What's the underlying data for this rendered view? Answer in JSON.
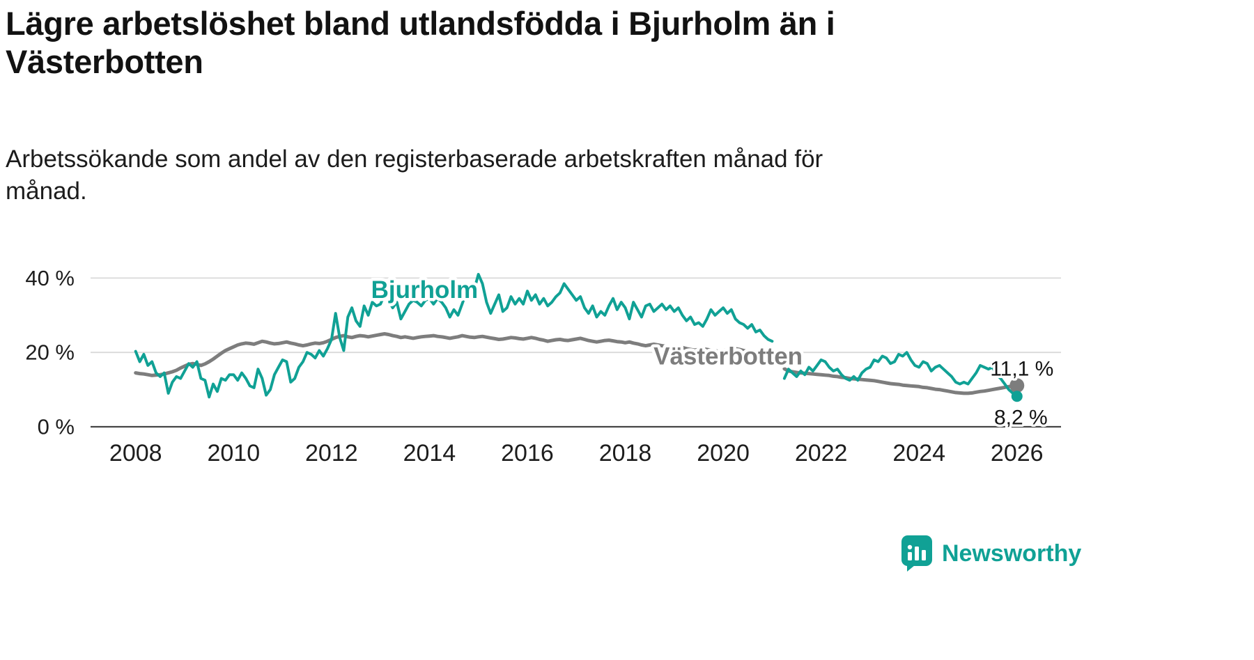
{
  "header": {
    "title": "Lägre arbetslöshet bland utlandsfödda i Bjurholm än i\nVästerbotten",
    "subtitle": "Arbetssökande som andel av den registerbaserade arbetskraften månad för\nmånad."
  },
  "branding": {
    "name": "Newsworthy",
    "color": "#10a195"
  },
  "chart_data": {
    "type": "line",
    "title": "Lägre arbetslöshet bland utlandsfödda i Bjurholm än i Västerbotten",
    "subtitle": "Arbetssökande som andel av den registerbaserade arbetskraften månad för månad.",
    "unit": "%",
    "grid": "horizontal",
    "legend": "inline-labels",
    "x_start_year": 2008,
    "x_interval_months": 1,
    "xlim": [
      2007.15,
      2026.9
    ],
    "ylim": [
      0,
      44
    ],
    "yticks": [
      {
        "value": 0,
        "label": "0 %"
      },
      {
        "value": 20,
        "label": "20 %"
      },
      {
        "value": 40,
        "label": "40 %"
      }
    ],
    "xticks": [
      {
        "year": 2008,
        "label": "2008"
      },
      {
        "year": 2010,
        "label": "2010"
      },
      {
        "year": 2012,
        "label": "2012"
      },
      {
        "year": 2014,
        "label": "2014"
      },
      {
        "year": 2016,
        "label": "2016"
      },
      {
        "year": 2018,
        "label": "2018"
      },
      {
        "year": 2020,
        "label": "2020"
      },
      {
        "year": 2022,
        "label": "2022"
      },
      {
        "year": 2024,
        "label": "2024"
      },
      {
        "year": 2026,
        "label": "2026"
      }
    ],
    "annotations": [
      {
        "text": "11,1 %",
        "year": 2026.1,
        "value": 15.5
      },
      {
        "text": "8,2 %",
        "year": 2026.08,
        "value": 2.4
      }
    ],
    "series": [
      {
        "name": "Bjurholm",
        "color": "#10a195",
        "end_value": 8.2,
        "end_label": "8,2 %",
        "label_year": 2013.9,
        "label_value": 36.8,
        "values": [
          20.3,
          17.5,
          19.5,
          16.5,
          17.5,
          14.5,
          13.5,
          14.5,
          9.0,
          12.0,
          13.5,
          13.0,
          15.0,
          17.0,
          16.0,
          17.5,
          13.0,
          12.5,
          8.0,
          11.5,
          9.5,
          13.0,
          12.5,
          14.0,
          14.0,
          12.5,
          14.5,
          13.0,
          11.0,
          10.5,
          15.5,
          13.0,
          8.5,
          10.0,
          14.0,
          16.0,
          18.0,
          17.5,
          12.0,
          13.0,
          16.0,
          17.5,
          20.0,
          19.5,
          18.5,
          20.5,
          19.0,
          21.0,
          23.5,
          30.5,
          24.0,
          20.5,
          29.5,
          32.0,
          28.5,
          27.0,
          32.5,
          30.0,
          33.5,
          32.5,
          33.0,
          35.5,
          34.0,
          32.0,
          33.5,
          29.0,
          31.0,
          33.0,
          34.0,
          33.5,
          32.5,
          34.0,
          34.5,
          33.0,
          34.5,
          33.5,
          32.0,
          29.5,
          31.5,
          30.0,
          33.0,
          36.0,
          34.5,
          37.0,
          41.0,
          38.5,
          33.5,
          30.5,
          33.0,
          35.5,
          31.0,
          32.0,
          35.0,
          33.0,
          34.5,
          33.0,
          36.5,
          34.0,
          35.5,
          33.0,
          34.5,
          32.5,
          33.5,
          35.0,
          36.0,
          38.5,
          37.0,
          35.5,
          34.0,
          35.0,
          32.0,
          30.5,
          32.5,
          29.5,
          31.0,
          30.0,
          32.5,
          34.5,
          31.5,
          33.5,
          32.0,
          29.0,
          33.5,
          31.5,
          29.5,
          32.5,
          33.0,
          31.0,
          32.0,
          33.0,
          31.5,
          32.5,
          31.0,
          32.0,
          30.0,
          28.5,
          29.5,
          27.5,
          28.0,
          27.0,
          29.0,
          31.5,
          30.0,
          31.0,
          32.0,
          30.5,
          31.5,
          29.0,
          28.0,
          27.5,
          26.5,
          27.5,
          25.5,
          26.0,
          24.5,
          23.5,
          23.0,
          null,
          null,
          13.0,
          15.5,
          14.5,
          13.5,
          15.0,
          14.0,
          16.0,
          15.0,
          16.5,
          18.0,
          17.5,
          16.0,
          15.0,
          15.5,
          14.0,
          13.0,
          12.5,
          13.5,
          12.5,
          14.5,
          15.5,
          16.0,
          18.0,
          17.5,
          19.0,
          18.5,
          17.0,
          17.5,
          19.5,
          19.0,
          20.0,
          18.0,
          16.5,
          16.0,
          17.5,
          17.0,
          15.0,
          16.0,
          16.5,
          15.5,
          14.5,
          13.5,
          12.0,
          11.5,
          12.0,
          11.5,
          13.0,
          14.5,
          16.5,
          16.0,
          15.5,
          16.0,
          14.0,
          13.0,
          11.5,
          10.0,
          9.0,
          8.2
        ]
      },
      {
        "name": "Västerbotten",
        "color": "#7d7d7d",
        "end_value": 11.1,
        "end_label": "11,1 %",
        "label_year": 2020.1,
        "label_value": 18.9,
        "values": [
          14.5,
          14.3,
          14.2,
          14.0,
          13.8,
          13.9,
          14.0,
          14.2,
          14.5,
          14.8,
          15.2,
          15.8,
          16.3,
          16.8,
          17.0,
          16.8,
          16.5,
          16.9,
          17.5,
          18.2,
          19.0,
          19.8,
          20.5,
          21.0,
          21.5,
          22.0,
          22.3,
          22.5,
          22.4,
          22.2,
          22.6,
          23.0,
          22.8,
          22.5,
          22.3,
          22.4,
          22.6,
          22.8,
          22.5,
          22.3,
          22.0,
          21.8,
          22.0,
          22.3,
          22.5,
          22.4,
          22.6,
          23.0,
          23.5,
          24.0,
          24.3,
          24.5,
          24.2,
          24.0,
          24.3,
          24.5,
          24.4,
          24.2,
          24.4,
          24.6,
          24.8,
          25.0,
          24.8,
          24.5,
          24.3,
          24.0,
          24.2,
          24.0,
          23.8,
          24.0,
          24.2,
          24.3,
          24.4,
          24.5,
          24.3,
          24.2,
          24.0,
          23.8,
          24.0,
          24.2,
          24.5,
          24.3,
          24.1,
          24.0,
          24.2,
          24.3,
          24.1,
          23.9,
          23.7,
          23.5,
          23.6,
          23.8,
          24.0,
          23.9,
          23.7,
          23.6,
          23.8,
          24.0,
          23.8,
          23.5,
          23.3,
          23.0,
          23.2,
          23.4,
          23.5,
          23.3,
          23.2,
          23.4,
          23.6,
          23.8,
          23.5,
          23.2,
          23.0,
          22.8,
          23.0,
          23.2,
          23.3,
          23.1,
          22.9,
          22.8,
          22.6,
          22.8,
          22.5,
          22.3,
          22.0,
          21.8,
          22.0,
          22.2,
          22.0,
          21.8,
          21.6,
          21.5,
          21.4,
          21.5,
          21.3,
          21.0,
          20.8,
          20.6,
          20.8,
          21.0,
          20.8,
          20.6,
          20.4,
          20.3,
          20.5,
          20.6,
          20.8,
          21.0,
          20.8,
          20.5,
          20.2,
          20.0,
          19.5,
          19.0,
          18.5,
          18.0,
          17.5,
          null,
          null,
          15.6,
          15.0,
          14.8,
          14.6,
          14.5,
          14.4,
          14.3,
          14.2,
          14.1,
          14.0,
          13.9,
          13.8,
          13.6,
          13.5,
          13.3,
          13.2,
          13.0,
          12.9,
          12.8,
          12.7,
          12.6,
          12.5,
          12.4,
          12.2,
          12.0,
          11.8,
          11.6,
          11.5,
          11.4,
          11.2,
          11.1,
          11.0,
          10.9,
          10.8,
          10.6,
          10.5,
          10.3,
          10.1,
          10.0,
          9.8,
          9.6,
          9.4,
          9.2,
          9.1,
          9.0,
          9.0,
          9.1,
          9.3,
          9.5,
          9.6,
          9.8,
          10.0,
          10.2,
          10.4,
          10.6,
          10.8,
          11.0,
          11.1
        ]
      }
    ]
  }
}
